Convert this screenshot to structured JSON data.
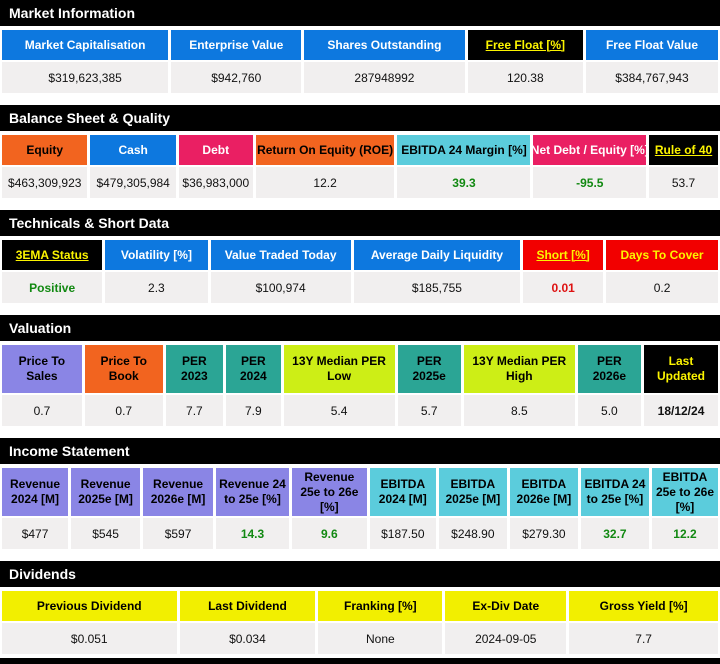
{
  "colors": {
    "header_blue": "#0D78DF",
    "header_orange": "#F2641F",
    "header_pink": "#EA1F63",
    "header_cyan": "#5BCCDC",
    "header_teal": "#2BA595",
    "header_chartreuse": "#CDEE16",
    "header_periwinkle": "#8A85E5",
    "header_yellow": "#F2EF00",
    "header_red": "#F20000",
    "header_black": "#000000",
    "link_yellow_text": "#FCF400",
    "value_row_bg": "#F1EFEF",
    "positive_green": "#128912",
    "negative_red": "#DE1212"
  },
  "sections": [
    {
      "title": "Market Information",
      "columns": [
        {
          "label": "Market Capitalisation",
          "value": "$319,623,385"
        },
        {
          "label": "Enterprise Value",
          "value": "$942,760"
        },
        {
          "label": "Shares Outstanding",
          "value": "287948992"
        },
        {
          "label": "Free Float [%]",
          "value": "120.38"
        },
        {
          "label": "Free Float Value",
          "value": "$384,767,943"
        }
      ]
    },
    {
      "title": "Balance Sheet & Quality",
      "columns": [
        {
          "label": "Equity",
          "value": "$463,309,923"
        },
        {
          "label": "Cash",
          "value": "$479,305,984"
        },
        {
          "label": "Debt",
          "value": "$36,983,000"
        },
        {
          "label": "Return On Equity (ROE)",
          "value": "12.2"
        },
        {
          "label": "EBITDA 24 Margin [%]",
          "value": "39.3"
        },
        {
          "label": "Net Debt / Equity [%]",
          "value": "-95.5"
        },
        {
          "label": "Rule of 40",
          "value": "53.7"
        }
      ]
    },
    {
      "title": "Technicals & Short Data",
      "columns": [
        {
          "label": "3EMA Status",
          "value": "Positive"
        },
        {
          "label": "Volatility [%]",
          "value": "2.3"
        },
        {
          "label": "Value Traded Today",
          "value": "$100,974"
        },
        {
          "label": "Average Daily Liquidity",
          "value": "$185,755"
        },
        {
          "label": "Short [%]",
          "value": "0.01"
        },
        {
          "label": "Days To Cover",
          "value": "0.2"
        }
      ]
    },
    {
      "title": "Valuation",
      "columns": [
        {
          "label": "Price To Sales",
          "value": "0.7"
        },
        {
          "label": "Price To Book",
          "value": "0.7"
        },
        {
          "label": "PER 2023",
          "value": "7.7"
        },
        {
          "label": "PER 2024",
          "value": "7.9"
        },
        {
          "label": "13Y Median PER Low",
          "value": "5.4"
        },
        {
          "label": "PER 2025e",
          "value": "5.7"
        },
        {
          "label": "13Y Median PER High",
          "value": "8.5"
        },
        {
          "label": "PER 2026e",
          "value": "5.0"
        },
        {
          "label": "Last Updated",
          "value": "18/12/24"
        }
      ]
    },
    {
      "title": "Income Statement",
      "columns": [
        {
          "label": "Revenue 2024 [M]",
          "value": "$477"
        },
        {
          "label": "Revenue 2025e [M]",
          "value": "$545"
        },
        {
          "label": "Revenue 2026e [M]",
          "value": "$597"
        },
        {
          "label": "Revenue 24 to 25e [%]",
          "value": "14.3"
        },
        {
          "label": "Revenue 25e to 26e [%]",
          "value": "9.6"
        },
        {
          "label": "EBITDA 2024 [M]",
          "value": "$187.50"
        },
        {
          "label": "EBITDA 2025e [M]",
          "value": "$248.90"
        },
        {
          "label": "EBITDA 2026e [M]",
          "value": "$279.30"
        },
        {
          "label": "EBITDA 24 to 25e [%]",
          "value": "32.7"
        },
        {
          "label": "EBITDA 25e to 26e [%]",
          "value": "12.2"
        }
      ]
    },
    {
      "title": "Dividends",
      "columns": [
        {
          "label": "Previous Dividend",
          "value": "$0.051"
        },
        {
          "label": "Last Dividend",
          "value": "$0.034"
        },
        {
          "label": "Franking [%]",
          "value": "None"
        },
        {
          "label": "Ex-Div Date",
          "value": "2024-09-05"
        },
        {
          "label": "Gross Yield [%]",
          "value": "7.7"
        }
      ]
    }
  ]
}
